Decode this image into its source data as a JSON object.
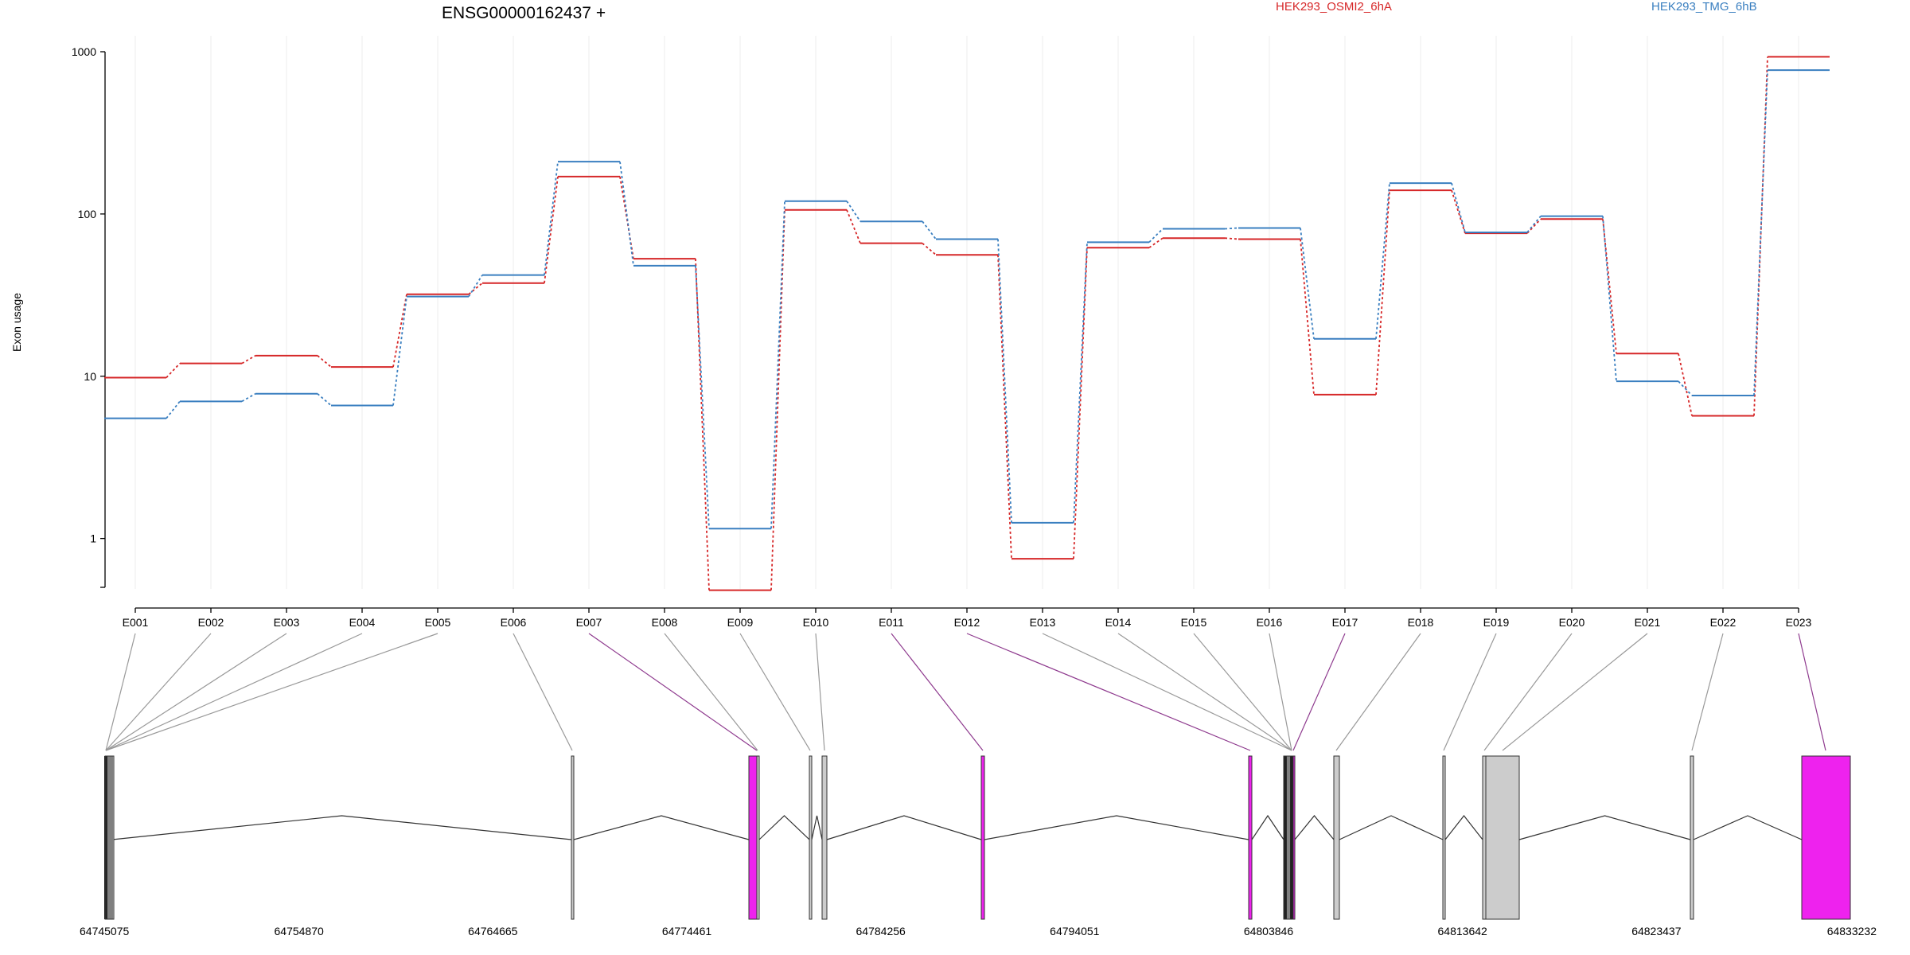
{
  "chart_data": {
    "type": "line",
    "title": "ENSG00000162437 +",
    "ylabel": "Exon usage",
    "y_scale": "log",
    "ylim": [
      0.5,
      1000
    ],
    "y_ticks": [
      "1",
      "10",
      "100",
      "1000"
    ],
    "y_tick_values": [
      1,
      10,
      100,
      1000
    ],
    "grid": "vertical lines at exon positions",
    "categories": [
      "E001",
      "E002",
      "E003",
      "E004",
      "E005",
      "E006",
      "E007",
      "E008",
      "E009",
      "E010",
      "E011",
      "E012",
      "E013",
      "E014",
      "E015",
      "E016",
      "E017",
      "E018",
      "E019",
      "E020",
      "E021",
      "E022",
      "E023"
    ],
    "series": [
      {
        "name": "HEK293_OSMI2_6hA",
        "color": "#d62728",
        "values": [
          9.8,
          12,
          13.4,
          11.4,
          32,
          37.5,
          170,
          53,
          0.48,
          106,
          66,
          56,
          0.75,
          62,
          71,
          70,
          7.7,
          140,
          76,
          93,
          13.8,
          5.7,
          930
        ]
      },
      {
        "name": "HEK293_TMG_6hB",
        "color": "#3a7fc0",
        "values": [
          5.5,
          7,
          7.8,
          6.6,
          31,
          42,
          210,
          48,
          1.15,
          120,
          90,
          70,
          1.25,
          67,
          81,
          82,
          17,
          155,
          77,
          97,
          9.3,
          7.6,
          770
        ]
      }
    ],
    "legend_placement": "top",
    "gene_model": {
      "axis_ticks": [
        "64745075",
        "64754870",
        "64764665",
        "64774461",
        "64784256",
        "64794051",
        "64803846",
        "64813642",
        "64823437",
        "64833232"
      ],
      "axis_min": 64745075,
      "axis_max": 64833232,
      "exon_color_default": "#cccccc",
      "exon_color_highlight": "#ee22ee",
      "highlighted_exons": [
        "E007",
        "E011",
        "E012",
        "E017",
        "E023"
      ]
    }
  }
}
